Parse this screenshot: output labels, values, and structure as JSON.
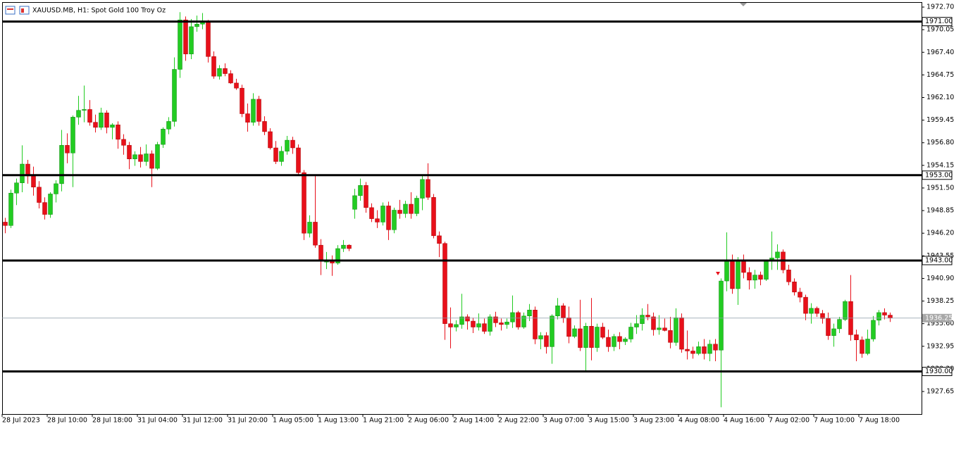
{
  "chart_data": {
    "type": "candlestick",
    "title": "XAUUSD.MB, H1:  Spot Gold 100 Troy Oz",
    "up_color": "#22cc22",
    "down_color": "#e8101a",
    "categories": [
      "28 Jul 2023",
      null,
      null,
      null,
      null,
      null,
      null,
      null,
      "28 Jul 10:00",
      null,
      null,
      null,
      null,
      null,
      null,
      null,
      "28 Jul 18:00",
      null,
      null,
      null,
      null,
      null,
      null,
      null,
      "31 Jul 04:00",
      null,
      null,
      null,
      null,
      null,
      null,
      null,
      "31 Jul 12:00",
      null,
      null,
      null,
      null,
      null,
      null,
      null,
      "31 Jul 20:00",
      null,
      null,
      null,
      null,
      null,
      null,
      null,
      "1 Aug 05:00",
      null,
      null,
      null,
      null,
      null,
      null,
      null,
      "1 Aug 13:00",
      null,
      null,
      null,
      null,
      null,
      null,
      null,
      "1 Aug 21:00",
      null,
      null,
      null,
      null,
      null,
      null,
      null,
      "2 Aug 06:00",
      null,
      null,
      null,
      null,
      null,
      null,
      null,
      "2 Aug 14:00",
      null,
      null,
      null,
      null,
      null,
      null,
      null,
      "2 Aug 22:00",
      null,
      null,
      null,
      null,
      null,
      null,
      null,
      "3 Aug 07:00",
      null,
      null,
      null,
      null,
      null,
      null,
      null,
      "3 Aug 15:00",
      null,
      null,
      null,
      null,
      null,
      null,
      null,
      "3 Aug 23:00",
      null,
      null,
      null,
      null,
      null,
      null,
      null,
      "4 Aug 08:00",
      null,
      null,
      null,
      null,
      null,
      null,
      null,
      "4 Aug 16:00",
      null,
      null,
      null,
      null,
      null,
      null,
      null,
      "7 Aug 02:00",
      null,
      null,
      null,
      null,
      null,
      null,
      null,
      "7 Aug 10:00",
      null,
      null,
      null,
      null,
      null,
      null,
      null,
      "7 Aug 18:00",
      null,
      null,
      null,
      null,
      null
    ],
    "open": [
      1947.5,
      1947.1,
      1950.9,
      1952.1,
      1954.3,
      1952.9,
      1951.6,
      1949.8,
      1948.4,
      1950.8,
      1952.0,
      1956.5,
      1955.6,
      1959.8,
      1960.6,
      1960.7,
      1959.2,
      1958.6,
      1960.3,
      1958.6,
      1958.9,
      1957.2,
      1956.5,
      1954.9,
      1955.4,
      1954.6,
      1955.5,
      1953.8,
      1956.6,
      1958.4,
      1959.3,
      1965.4,
      1971.2,
      1967.2,
      1970.4,
      1970.7,
      1971.0,
      1966.9,
      1964.6,
      1965.5,
      1964.9,
      1963.8,
      1963.2,
      1960.2,
      1959.2,
      1961.9,
      1959.3,
      1958.1,
      1956.2,
      1954.6,
      1955.8,
      1957.1,
      1956.2,
      1953.3,
      1946.2,
      1947.5,
      1944.8,
      1942.9,
      1942.9,
      1942.7,
      1944.4,
      1944.8,
      1949.0,
      1950.6,
      1951.8,
      1949.2,
      1947.9,
      1947.5,
      1949.4,
      1946.6,
      1948.9,
      1948.5,
      1949.6,
      1948.5,
      1950.3,
      1952.5,
      1950.4,
      1945.9,
      1945.0,
      1935.6,
      1935.2,
      1935.5,
      1936.4,
      1935.9,
      1935.2,
      1935.6,
      1934.7,
      1936.4,
      1935.7,
      1935.5,
      1935.8,
      1936.9,
      1935.2,
      1936.5,
      1937.2,
      1933.8,
      1934.2,
      1932.9,
      1936.5,
      1937.7,
      1936.3,
      1934.1,
      1935.0,
      1932.8,
      1935.3,
      1932.8,
      1935.2,
      1934.0,
      1932.9,
      1934.1,
      1933.5,
      1933.8,
      1935.2,
      1935.6,
      1936.6,
      1936.4,
      1934.9,
      1935.1,
      1934.8,
      1933.4,
      1936.3,
      1932.6,
      1932.4,
      1932.1,
      1932.9,
      1932.1,
      1933.2,
      1932.5,
      1940.6,
      1943.1,
      1939.7,
      1943.0,
      1941.6,
      1940.7,
      1941.3,
      1940.8,
      1942.9,
      1943.3,
      1944.0,
      1941.9,
      1940.5,
      1939.3,
      1938.7,
      1936.8,
      1937.4,
      1936.8,
      1936.2,
      1934.2,
      1935.0,
      1936.1,
      1938.2,
      1934.3,
      1933.7,
      1932.1,
      1933.8,
      1936.0,
      1936.9,
      1936.6
    ],
    "high": [
      1948.0,
      1951.3,
      1952.6,
      1956.5,
      1954.8,
      1954.0,
      1952.3,
      1950.4,
      1951.0,
      1952.4,
      1958.3,
      1957.9,
      1960.0,
      1962.3,
      1963.5,
      1961.8,
      1960.1,
      1960.9,
      1960.6,
      1959.1,
      1959.3,
      1957.8,
      1956.9,
      1955.8,
      1956.3,
      1956.6,
      1955.9,
      1956.9,
      1958.6,
      1959.8,
      1966.8,
      1972.1,
      1971.6,
      1971.3,
      1971.7,
      1972.0,
      1971.2,
      1967.5,
      1965.9,
      1966.1,
      1965.3,
      1964.3,
      1963.6,
      1961.4,
      1962.6,
      1962.3,
      1959.9,
      1958.5,
      1957.0,
      1956.4,
      1957.6,
      1957.5,
      1956.6,
      1953.6,
      1948.3,
      1953.0,
      1945.5,
      1944.0,
      1943.6,
      1944.8,
      1945.4,
      1944.9,
      1951.4,
      1952.6,
      1952.2,
      1949.7,
      1948.9,
      1949.8,
      1949.9,
      1949.2,
      1950.1,
      1950.0,
      1951.0,
      1950.6,
      1953.0,
      1954.4,
      1950.8,
      1946.4,
      1945.2,
      1937.5,
      1936.0,
      1939.1,
      1936.7,
      1936.3,
      1936.8,
      1936.2,
      1936.7,
      1937.0,
      1936.2,
      1936.2,
      1938.9,
      1937.1,
      1936.9,
      1937.9,
      1937.6,
      1934.6,
      1934.6,
      1936.7,
      1938.6,
      1938.0,
      1937.6,
      1935.4,
      1938.4,
      1935.7,
      1938.6,
      1935.6,
      1935.7,
      1934.9,
      1934.4,
      1934.6,
      1934.0,
      1935.7,
      1936.6,
      1937.4,
      1937.9,
      1936.9,
      1936.6,
      1936.2,
      1936.4,
      1937.4,
      1936.8,
      1934.8,
      1932.9,
      1933.5,
      1933.8,
      1933.7,
      1933.8,
      1940.9,
      1946.3,
      1943.7,
      1943.4,
      1943.7,
      1942.2,
      1941.9,
      1941.7,
      1943.1,
      1946.4,
      1944.9,
      1944.3,
      1942.5,
      1940.9,
      1939.8,
      1939.0,
      1938.0,
      1937.6,
      1937.2,
      1936.9,
      1935.6,
      1936.4,
      1938.4,
      1941.3,
      1934.9,
      1934.1,
      1934.9,
      1936.5,
      1937.2,
      1937.4,
      1936.9
    ],
    "low": [
      1946.2,
      1946.8,
      1949.5,
      1951.0,
      1952.0,
      1950.6,
      1949.1,
      1947.8,
      1948.0,
      1949.8,
      1951.1,
      1954.4,
      1951.6,
      1958.9,
      1959.2,
      1958.8,
      1958.0,
      1958.3,
      1957.9,
      1957.2,
      1956.1,
      1955.4,
      1953.7,
      1954.1,
      1953.9,
      1954.1,
      1951.6,
      1953.6,
      1956.2,
      1957.8,
      1958.7,
      1964.4,
      1966.4,
      1966.6,
      1969.8,
      1970.1,
      1966.2,
      1964.3,
      1964.2,
      1964.6,
      1963.7,
      1963.0,
      1959.8,
      1958.1,
      1958.8,
      1958.8,
      1957.7,
      1956.0,
      1954.3,
      1954.1,
      1955.4,
      1955.5,
      1952.9,
      1945.4,
      1945.7,
      1944.5,
      1941.3,
      1942.0,
      1941.2,
      1942.5,
      1944.0,
      1944.1,
      1947.9,
      1950.0,
      1948.6,
      1947.5,
      1946.8,
      1947.1,
      1945.4,
      1946.2,
      1947.9,
      1948.0,
      1947.9,
      1948.2,
      1948.9,
      1950.1,
      1945.6,
      1943.4,
      1933.7,
      1932.7,
      1934.7,
      1935.0,
      1934.9,
      1934.5,
      1934.8,
      1934.4,
      1934.2,
      1935.2,
      1934.8,
      1935.0,
      1935.1,
      1934.9,
      1935.0,
      1935.9,
      1933.2,
      1932.6,
      1932.1,
      1930.9,
      1936.1,
      1935.7,
      1933.3,
      1933.9,
      1932.4,
      1930.1,
      1931.3,
      1932.3,
      1933.8,
      1932.3,
      1932.4,
      1932.6,
      1933.1,
      1933.4,
      1934.4,
      1934.8,
      1936.0,
      1934.2,
      1934.3,
      1934.7,
      1932.7,
      1933.0,
      1932.2,
      1931.4,
      1931.5,
      1931.9,
      1931.4,
      1931.2,
      1931.2,
      1925.8,
      1939.4,
      1939.1,
      1937.8,
      1940.9,
      1939.6,
      1939.7,
      1940.1,
      1940.6,
      1941.9,
      1941.9,
      1941.5,
      1940.1,
      1938.9,
      1938.1,
      1936.0,
      1935.6,
      1936.4,
      1935.6,
      1933.7,
      1932.9,
      1934.5,
      1935.9,
      1933.6,
      1931.2,
      1931.6,
      1931.9,
      1933.5,
      1935.4,
      1936.1,
      1935.8
    ],
    "close": [
      1947.1,
      1950.9,
      1952.1,
      1954.3,
      1952.9,
      1951.6,
      1949.8,
      1948.4,
      1950.8,
      1952.0,
      1956.5,
      1955.6,
      1959.8,
      1960.6,
      1960.7,
      1959.2,
      1958.6,
      1960.3,
      1958.6,
      1958.9,
      1957.2,
      1956.5,
      1954.9,
      1955.4,
      1954.6,
      1955.5,
      1953.8,
      1956.6,
      1958.4,
      1959.3,
      1965.4,
      1971.2,
      1967.2,
      1970.4,
      1970.7,
      1971.0,
      1966.9,
      1964.6,
      1965.5,
      1964.9,
      1963.8,
      1963.2,
      1960.2,
      1959.2,
      1961.9,
      1959.3,
      1958.1,
      1956.2,
      1954.6,
      1955.8,
      1957.1,
      1956.2,
      1953.3,
      1946.2,
      1947.5,
      1944.8,
      1942.9,
      1942.9,
      1942.7,
      1944.4,
      1944.8,
      1944.4,
      1950.6,
      1951.8,
      1949.2,
      1947.9,
      1947.5,
      1949.4,
      1946.6,
      1948.9,
      1948.5,
      1949.6,
      1948.5,
      1950.3,
      1952.5,
      1950.4,
      1945.9,
      1945.0,
      1935.6,
      1935.2,
      1935.5,
      1936.4,
      1935.9,
      1935.2,
      1935.6,
      1934.7,
      1936.4,
      1935.7,
      1935.5,
      1935.8,
      1936.9,
      1935.2,
      1936.5,
      1937.2,
      1933.8,
      1934.2,
      1932.9,
      1936.5,
      1937.7,
      1936.3,
      1934.1,
      1935.0,
      1932.8,
      1935.3,
      1932.8,
      1935.2,
      1934.0,
      1932.9,
      1934.1,
      1933.5,
      1933.8,
      1935.2,
      1935.6,
      1936.6,
      1936.4,
      1934.9,
      1935.1,
      1934.8,
      1933.4,
      1936.3,
      1932.6,
      1932.4,
      1932.1,
      1932.9,
      1932.1,
      1933.2,
      1932.5,
      1940.6,
      1943.1,
      1939.7,
      1943.0,
      1941.6,
      1940.7,
      1941.3,
      1940.8,
      1942.9,
      1943.3,
      1944.0,
      1941.9,
      1940.5,
      1939.3,
      1938.7,
      1936.8,
      1937.4,
      1936.8,
      1936.2,
      1934.2,
      1935.0,
      1936.1,
      1938.2,
      1934.3,
      1933.7,
      1932.1,
      1933.8,
      1936.0,
      1936.9,
      1936.6,
      1936.25
    ],
    "ylim": [
      1925.01,
      1973.28
    ],
    "yticks": [
      {
        "value": 1972.7,
        "label": "1972.70"
      },
      1970.05,
      {
        "value": 1967.4,
        "label": "1967.40"
      },
      1964.75,
      {
        "value": 1962.1,
        "label": "1962.10"
      },
      1959.45,
      {
        "value": 1956.8,
        "label": "1956.80"
      },
      1954.15,
      {
        "value": 1951.5,
        "label": "1951.50"
      },
      1948.85,
      {
        "value": 1946.2,
        "label": "1946.20"
      },
      1943.55,
      {
        "value": 1940.9,
        "label": "1940.90"
      },
      1938.25,
      {
        "value": 1935.6,
        "label": "1935.60"
      },
      1932.95,
      {
        "value": 1930.3,
        "label": "1930.30"
      },
      1927.65
    ],
    "levels": [
      {
        "value": 1971,
        "label": "1971.00"
      },
      {
        "value": 1953,
        "label": "1953.00"
      },
      {
        "value": 1943,
        "label": "1943.00"
      },
      {
        "value": 1930,
        "label": "1930.00"
      }
    ],
    "current_price": 1936.25
  }
}
